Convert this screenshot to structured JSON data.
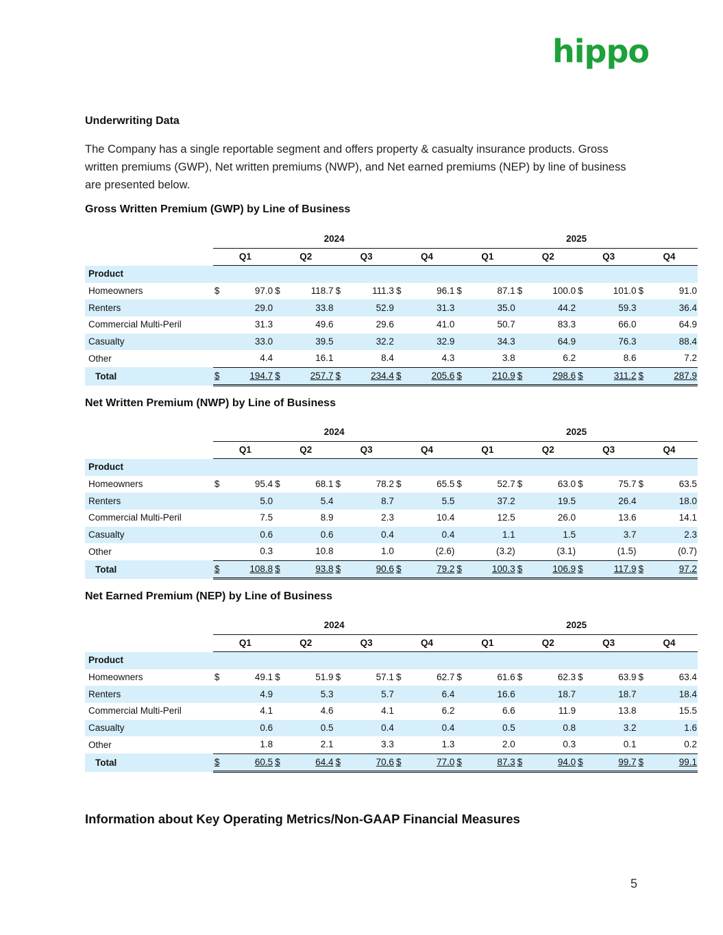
{
  "logo_text": "hippo",
  "brand_color": "#1ea03a",
  "section_title": "Underwriting Data",
  "intro_text": "The Company has a single reportable segment and offers property & casualty insurance products. Gross written premiums (GWP), Net written premiums (NWP), and Net earned premiums (NEP) by line of business  are presented below.",
  "years": [
    "2024",
    "2025"
  ],
  "quarters": [
    "Q1",
    "Q2",
    "Q3",
    "Q4",
    "Q1",
    "Q2",
    "Q3",
    "Q4"
  ],
  "product_header": "Product",
  "currency_symbol": "$",
  "tables": [
    {
      "title": "Gross Written Premium (GWP) by Line of Business",
      "rows": [
        {
          "label": "Homeowners",
          "values": [
            "97.0",
            "118.7",
            "111.3",
            "96.1",
            "87.1",
            "100.0",
            "101.0",
            "91.0"
          ]
        },
        {
          "label": "Renters",
          "values": [
            "29.0",
            "33.8",
            "52.9",
            "31.3",
            "35.0",
            "44.2",
            "59.3",
            "36.4"
          ]
        },
        {
          "label": "Commercial Multi-Peril",
          "values": [
            "31.3",
            "49.6",
            "29.6",
            "41.0",
            "50.7",
            "83.3",
            "66.0",
            "64.9"
          ]
        },
        {
          "label": "Casualty",
          "values": [
            "33.0",
            "39.5",
            "32.2",
            "32.9",
            "34.3",
            "64.9",
            "76.3",
            "88.4"
          ]
        },
        {
          "label": "Other",
          "values": [
            "4.4",
            "16.1",
            "8.4",
            "4.3",
            "3.8",
            "6.2",
            "8.6",
            "7.2"
          ]
        }
      ],
      "total": {
        "label": "Total",
        "values": [
          "194.7",
          "257.7",
          "234.4",
          "205.6",
          "210.9",
          "298.6",
          "311.2",
          "287.9"
        ]
      }
    },
    {
      "title": "Net Written Premium (NWP) by Line of Business",
      "rows": [
        {
          "label": "Homeowners",
          "values": [
            "95.4",
            "68.1",
            "78.2",
            "65.5",
            "52.7",
            "63.0",
            "75.7",
            "63.5"
          ]
        },
        {
          "label": "Renters",
          "values": [
            "5.0",
            "5.4",
            "8.7",
            "5.5",
            "37.2",
            "19.5",
            "26.4",
            "18.0"
          ]
        },
        {
          "label": "Commercial Multi-Peril",
          "values": [
            "7.5",
            "8.9",
            "2.3",
            "10.4",
            "12.5",
            "26.0",
            "13.6",
            "14.1"
          ]
        },
        {
          "label": "Casualty",
          "values": [
            "0.6",
            "0.6",
            "0.4",
            "0.4",
            "1.1",
            "1.5",
            "3.7",
            "2.3"
          ]
        },
        {
          "label": "Other",
          "values": [
            "0.3",
            "10.8",
            "1.0",
            "(2.6)",
            "(3.2)",
            "(3.1)",
            "(1.5)",
            "(0.7)"
          ]
        }
      ],
      "total": {
        "label": "Total",
        "values": [
          "108.8",
          "93.8",
          "90.6",
          "79.2",
          "100.3",
          "106.9",
          "117.9",
          "97.2"
        ]
      }
    },
    {
      "title": "Net Earned Premium (NEP) by Line of Business",
      "rows": [
        {
          "label": "Homeowners",
          "values": [
            "49.1",
            "51.9",
            "57.1",
            "62.7",
            "61.6",
            "62.3",
            "63.9",
            "63.4"
          ]
        },
        {
          "label": "Renters",
          "values": [
            "4.9",
            "5.3",
            "5.7",
            "6.4",
            "16.6",
            "18.7",
            "18.7",
            "18.4"
          ]
        },
        {
          "label": "Commercial Multi-Peril",
          "values": [
            "4.1",
            "4.6",
            "4.1",
            "6.2",
            "6.6",
            "11.9",
            "13.8",
            "15.5"
          ]
        },
        {
          "label": "Casualty",
          "values": [
            "0.6",
            "0.5",
            "0.4",
            "0.4",
            "0.5",
            "0.8",
            "3.2",
            "1.6"
          ]
        },
        {
          "label": "Other",
          "values": [
            "1.8",
            "2.1",
            "3.3",
            "1.3",
            "2.0",
            "0.3",
            "0.1",
            "0.2"
          ]
        }
      ],
      "total": {
        "label": "Total",
        "values": [
          "60.5",
          "64.4",
          "70.6",
          "77.0",
          "87.3",
          "94.0",
          "99.7",
          "99.1"
        ]
      }
    }
  ],
  "key_metrics_heading": "Information about Key Operating Metrics/Non-GAAP Financial Measures",
  "page_number": "5"
}
